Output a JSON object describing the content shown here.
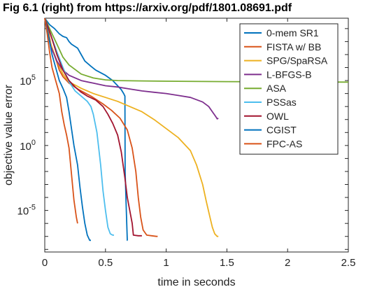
{
  "chart_data": {
    "type": "line",
    "title": "Fig 6.1 (right) from https://arxiv.org/pdf/1801.08691.pdf",
    "xlabel": "time in seconds",
    "ylabel": "objective value error",
    "xlim": [
      0,
      2.5
    ],
    "ylim_log10": [
      -8.2,
      9.8
    ],
    "yscale": "log",
    "grid": false,
    "legend_position": "top-right",
    "x_ticks": [
      {
        "value": 0,
        "label": "0"
      },
      {
        "value": 0.5,
        "label": "0.5"
      },
      {
        "value": 1,
        "label": "1"
      },
      {
        "value": 1.5,
        "label": "1.5"
      },
      {
        "value": 2,
        "label": "2"
      },
      {
        "value": 2.5,
        "label": "2.5"
      }
    ],
    "y_ticks": [
      {
        "exp": 5,
        "base": "10",
        "sup": "5"
      },
      {
        "exp": 0,
        "base": "10",
        "sup": "0"
      },
      {
        "exp": -5,
        "base": "10",
        "sup": "-5"
      }
    ],
    "series": [
      {
        "name": "0-mem SR1",
        "color": "#0072BD",
        "points": [
          [
            0.0,
            9.8
          ],
          [
            0.04,
            9.3
          ],
          [
            0.08,
            9.0
          ],
          [
            0.12,
            8.6
          ],
          [
            0.15,
            8.4
          ],
          [
            0.18,
            8.3
          ],
          [
            0.2,
            8.0
          ],
          [
            0.22,
            7.8
          ],
          [
            0.27,
            7.5
          ],
          [
            0.3,
            7.0
          ],
          [
            0.33,
            6.5
          ],
          [
            0.38,
            6.1
          ],
          [
            0.42,
            5.8
          ],
          [
            0.5,
            5.4
          ],
          [
            0.56,
            5.0
          ],
          [
            0.6,
            4.6
          ],
          [
            0.63,
            4.3
          ],
          [
            0.65,
            4.0
          ],
          [
            0.66,
            3.8
          ],
          [
            0.662,
            -2.0
          ],
          [
            0.67,
            -4.5
          ],
          [
            0.675,
            -6.0
          ],
          [
            0.68,
            -7.3
          ],
          [
            0.682,
            -7.3
          ]
        ]
      },
      {
        "name": "FISTA w/ BB",
        "color": "#D95319",
        "points": [
          [
            0.0,
            9.8
          ],
          [
            0.03,
            8.8
          ],
          [
            0.05,
            7.8
          ],
          [
            0.07,
            7.2
          ],
          [
            0.1,
            6.4
          ],
          [
            0.12,
            5.8
          ],
          [
            0.15,
            5.3
          ],
          [
            0.2,
            4.8
          ],
          [
            0.28,
            4.3
          ],
          [
            0.38,
            3.8
          ],
          [
            0.48,
            3.2
          ],
          [
            0.55,
            2.7
          ],
          [
            0.62,
            2.1
          ],
          [
            0.68,
            1.2
          ],
          [
            0.72,
            -0.2
          ],
          [
            0.75,
            -2.0
          ],
          [
            0.77,
            -4.0
          ],
          [
            0.79,
            -5.5
          ],
          [
            0.81,
            -6.5
          ],
          [
            0.84,
            -6.9
          ],
          [
            0.88,
            -6.95
          ],
          [
            0.92,
            -7.0
          ],
          [
            0.93,
            -7.0
          ]
        ]
      },
      {
        "name": "SPG/SpaRSA",
        "color": "#EDB120",
        "points": [
          [
            0.0,
            9.8
          ],
          [
            0.05,
            7.8
          ],
          [
            0.1,
            6.5
          ],
          [
            0.15,
            5.5
          ],
          [
            0.2,
            4.9
          ],
          [
            0.3,
            4.4
          ],
          [
            0.4,
            4.0
          ],
          [
            0.5,
            3.7
          ],
          [
            0.6,
            3.4
          ],
          [
            0.7,
            3.0
          ],
          [
            0.8,
            2.6
          ],
          [
            0.9,
            2.0
          ],
          [
            1.0,
            1.3
          ],
          [
            1.1,
            0.6
          ],
          [
            1.2,
            -0.4
          ],
          [
            1.25,
            -1.5
          ],
          [
            1.3,
            -3.0
          ],
          [
            1.33,
            -4.3
          ],
          [
            1.36,
            -5.5
          ],
          [
            1.38,
            -6.3
          ],
          [
            1.4,
            -6.8
          ],
          [
            1.42,
            -7.0
          ],
          [
            1.43,
            -7.0
          ]
        ]
      },
      {
        "name": "L-BFGS-B",
        "color": "#7E2F8E",
        "points": [
          [
            0.0,
            9.8
          ],
          [
            0.05,
            7.6
          ],
          [
            0.1,
            6.5
          ],
          [
            0.15,
            5.8
          ],
          [
            0.2,
            5.4
          ],
          [
            0.3,
            5.0
          ],
          [
            0.4,
            4.8
          ],
          [
            0.5,
            4.6
          ],
          [
            0.6,
            4.5
          ],
          [
            0.7,
            4.35
          ],
          [
            0.8,
            4.2
          ],
          [
            0.9,
            4.1
          ],
          [
            1.0,
            4.0
          ],
          [
            1.1,
            3.85
          ],
          [
            1.2,
            3.7
          ],
          [
            1.3,
            3.35
          ],
          [
            1.35,
            3.0
          ],
          [
            1.38,
            2.6
          ],
          [
            1.41,
            2.2
          ],
          [
            1.42,
            2.05
          ],
          [
            1.43,
            2.1
          ]
        ]
      },
      {
        "name": "ASA",
        "color": "#77AC30",
        "points": [
          [
            0.0,
            9.8
          ],
          [
            0.05,
            8.8
          ],
          [
            0.1,
            7.8
          ],
          [
            0.15,
            6.8
          ],
          [
            0.2,
            6.2
          ],
          [
            0.3,
            5.5
          ],
          [
            0.4,
            5.2
          ],
          [
            0.5,
            5.05
          ],
          [
            0.6,
            5.0
          ],
          [
            0.8,
            4.97
          ],
          [
            1.0,
            4.95
          ],
          [
            1.5,
            4.92
          ],
          [
            2.0,
            4.9
          ],
          [
            2.5,
            4.88
          ]
        ]
      },
      {
        "name": "PSSas",
        "color": "#4DBEEE",
        "points": [
          [
            0.0,
            9.8
          ],
          [
            0.05,
            8.5
          ],
          [
            0.1,
            7.2
          ],
          [
            0.15,
            6.0
          ],
          [
            0.2,
            4.9
          ],
          [
            0.25,
            4.2
          ],
          [
            0.3,
            3.8
          ],
          [
            0.35,
            3.4
          ],
          [
            0.38,
            3.0
          ],
          [
            0.4,
            2.4
          ],
          [
            0.43,
            1.0
          ],
          [
            0.46,
            -1.5
          ],
          [
            0.48,
            -3.5
          ],
          [
            0.5,
            -5.0
          ],
          [
            0.52,
            -6.3
          ],
          [
            0.54,
            -6.8
          ],
          [
            0.56,
            -6.9
          ],
          [
            0.57,
            -6.9
          ]
        ]
      },
      {
        "name": "OWL",
        "color": "#A2142F",
        "points": [
          [
            0.0,
            9.8
          ],
          [
            0.05,
            8.5
          ],
          [
            0.1,
            7.0
          ],
          [
            0.15,
            5.8
          ],
          [
            0.2,
            5.0
          ],
          [
            0.25,
            4.5
          ],
          [
            0.3,
            4.1
          ],
          [
            0.35,
            3.8
          ],
          [
            0.42,
            3.5
          ],
          [
            0.48,
            3.0
          ],
          [
            0.52,
            2.4
          ],
          [
            0.56,
            1.7
          ],
          [
            0.6,
            0.8
          ],
          [
            0.63,
            -0.5
          ],
          [
            0.66,
            -2.5
          ],
          [
            0.68,
            -4.0
          ],
          [
            0.7,
            -5.0
          ],
          [
            0.72,
            -6.0
          ],
          [
            0.73,
            -6.9
          ],
          [
            0.77,
            -6.95
          ],
          [
            0.8,
            -6.95
          ]
        ]
      },
      {
        "name": "CGIST",
        "color": "#0072BD",
        "points": [
          [
            0.0,
            9.8
          ],
          [
            0.03,
            8.5
          ],
          [
            0.06,
            7.0
          ],
          [
            0.09,
            6.0
          ],
          [
            0.12,
            5.0
          ],
          [
            0.15,
            4.4
          ],
          [
            0.18,
            3.7
          ],
          [
            0.2,
            2.6
          ],
          [
            0.22,
            1.3
          ],
          [
            0.24,
            0.0
          ],
          [
            0.27,
            -1.5
          ],
          [
            0.29,
            -3.2
          ],
          [
            0.31,
            -4.7
          ],
          [
            0.33,
            -6.0
          ],
          [
            0.35,
            -6.9
          ],
          [
            0.37,
            -7.3
          ],
          [
            0.38,
            -7.3
          ]
        ]
      },
      {
        "name": "FPC-AS",
        "color": "#D95319",
        "points": [
          [
            0.0,
            9.8
          ],
          [
            0.02,
            8.6
          ],
          [
            0.04,
            7.2
          ],
          [
            0.06,
            6.0
          ],
          [
            0.09,
            5.0
          ],
          [
            0.12,
            4.0
          ],
          [
            0.14,
            2.6
          ],
          [
            0.16,
            1.6
          ],
          [
            0.18,
            0.8
          ],
          [
            0.2,
            -0.2
          ],
          [
            0.22,
            -2.2
          ],
          [
            0.24,
            -4.2
          ],
          [
            0.26,
            -5.5
          ],
          [
            0.27,
            -6.0
          ]
        ]
      }
    ]
  }
}
